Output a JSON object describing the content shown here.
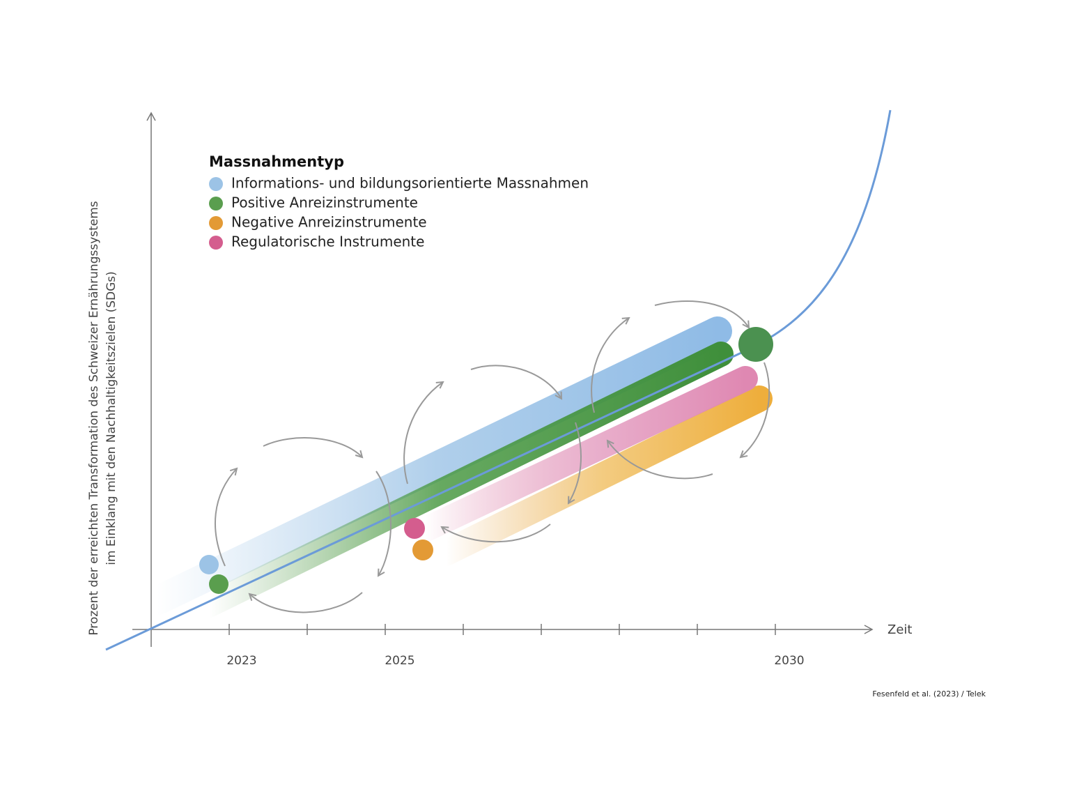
{
  "legend": {
    "title": "Massnahmentyp",
    "items": [
      {
        "label": "Informations- und bildungsorientierte Massnahmen",
        "color": "#9cc3e6"
      },
      {
        "label": "Positive Anreizinstrumente",
        "color": "#5a9e4e"
      },
      {
        "label": "Negative Anreizinstrumente",
        "color": "#e39a35"
      },
      {
        "label": "Regulatorische Instrumente",
        "color": "#d45d8e"
      }
    ]
  },
  "y_axis_label": [
    "Prozent der erreichten Transformation des Schweizer Ernährungssystems",
    "im Einklang mit den Nachhaltigkeitszielen (SDGs)"
  ],
  "x_axis": {
    "label": "Zeit",
    "ticks": [
      "2023",
      "2025",
      "2030"
    ]
  },
  "credit": "Fesenfeld et al. (2023) / Telek"
}
